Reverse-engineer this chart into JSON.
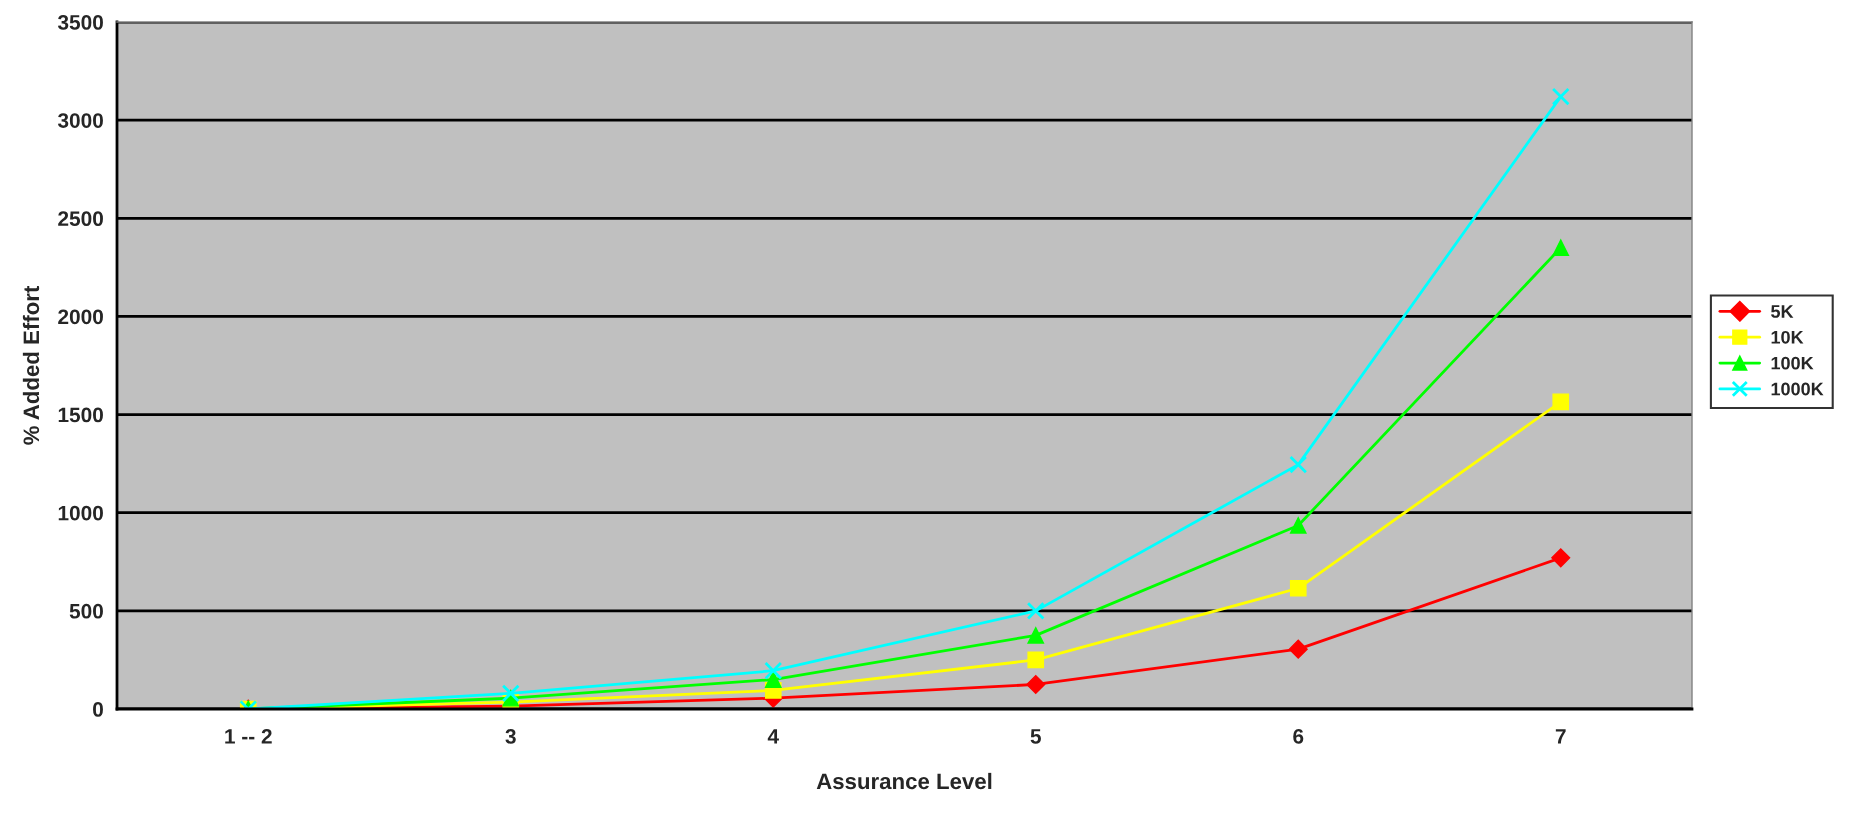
{
  "chart_data": {
    "type": "line",
    "xlabel": "Assurance Level",
    "ylabel": "% Added Effort",
    "categories": [
      "1 -- 2",
      "3",
      "4",
      "5",
      "6",
      "7"
    ],
    "series": [
      {
        "name": "5K",
        "color": "#ff0000",
        "marker": "diamond",
        "values": [
          0,
          15,
          55,
          125,
          305,
          770
        ]
      },
      {
        "name": "10K",
        "color": "#ffff00",
        "marker": "square",
        "values": [
          0,
          35,
          95,
          250,
          615,
          1565
        ]
      },
      {
        "name": "100K",
        "color": "#00ff00",
        "marker": "triangle",
        "values": [
          0,
          55,
          150,
          375,
          935,
          2350
        ]
      },
      {
        "name": "1000K",
        "color": "#00ffff",
        "marker": "cross",
        "values": [
          0,
          80,
          195,
          500,
          1245,
          3120
        ]
      }
    ],
    "ylim": [
      0,
      3500
    ],
    "yticks": [
      0,
      500,
      1000,
      1500,
      2000,
      2500,
      3000,
      3500
    ],
    "grid": "y",
    "legend": "right",
    "line_style": "solid"
  }
}
